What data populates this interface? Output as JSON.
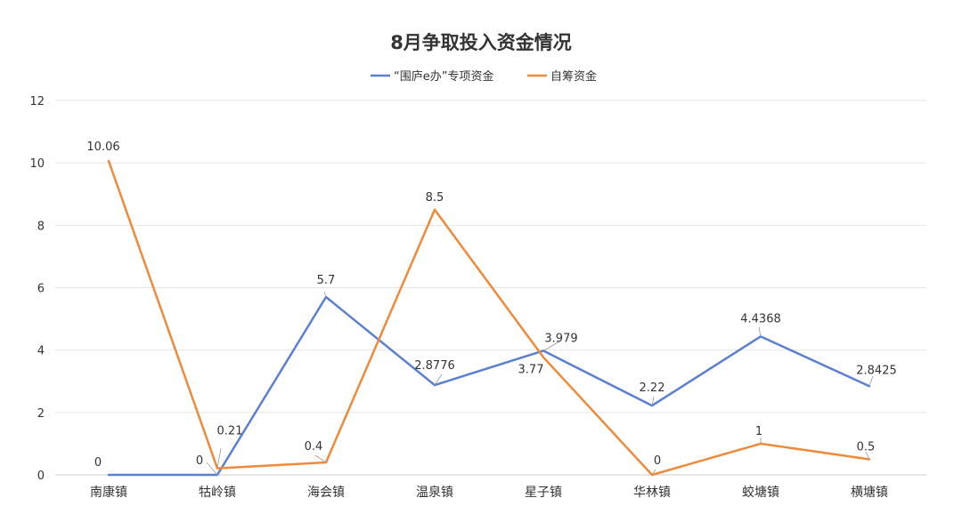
{
  "chart_data": {
    "type": "line",
    "title": "8月争取投入资金情况",
    "categories": [
      "南康镇",
      "牯岭镇",
      "海会镇",
      "温泉镇",
      "星子镇",
      "华林镇",
      "蛟塘镇",
      "横塘镇"
    ],
    "ylim": [
      0,
      12
    ],
    "yticks": [
      0,
      2,
      4,
      6,
      8,
      10,
      12
    ],
    "grid": true,
    "legend_position": "top-center",
    "series": [
      {
        "name": "“围庐e办”专项资金",
        "color": "#5b7fd1",
        "values": [
          0,
          0,
          5.7,
          2.8776,
          3.979,
          2.22,
          4.4368,
          2.8425
        ],
        "labels": [
          "0",
          "0",
          "5.7",
          "2.8776",
          "3.979",
          "2.22",
          "4.4368",
          "2.8425"
        ]
      },
      {
        "name": "自筹资金",
        "color": "#ee8a3a",
        "values": [
          10.06,
          0.21,
          0.4,
          8.5,
          3.77,
          0,
          1,
          0.5
        ],
        "labels": [
          "10.06",
          "0.21",
          "0.4",
          "8.5",
          "3.77",
          "0",
          "1",
          "0.5"
        ]
      }
    ]
  }
}
